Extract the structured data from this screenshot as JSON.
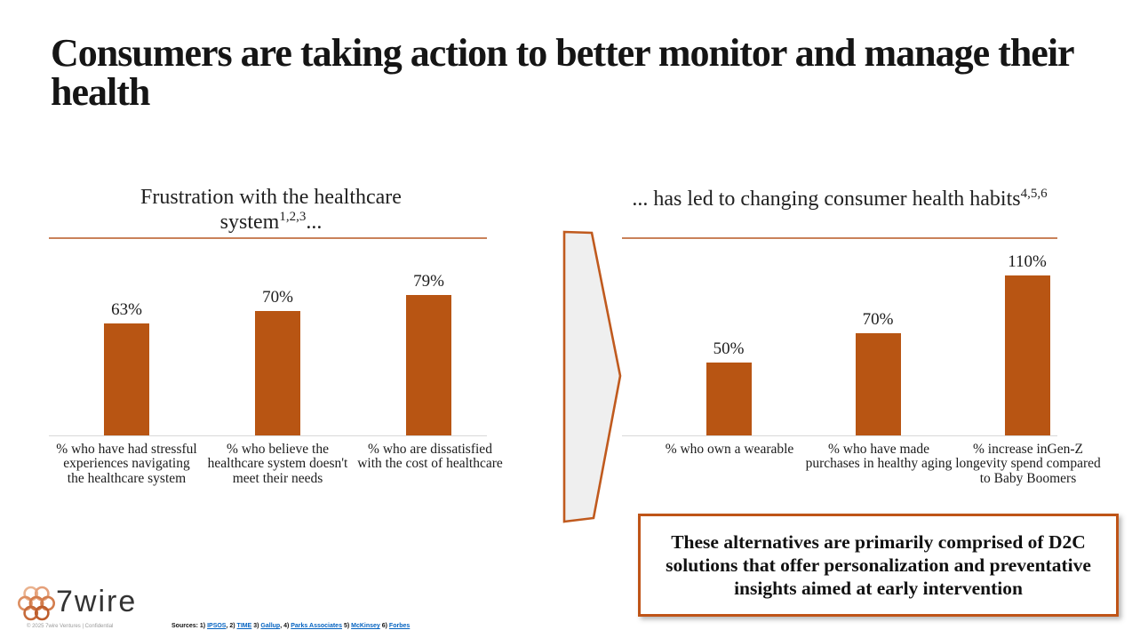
{
  "slide": {
    "title": "Consumers are taking action to better monitor and manage their health"
  },
  "left_panel": {
    "title_main": "Frustration with the healthcare system",
    "title_sup": "1,2,3",
    "title_tail": "..."
  },
  "right_panel": {
    "title_main": "... has led to changing consumer health habits",
    "title_sup": "4,5,6",
    "title_tail": ""
  },
  "chart_data": [
    {
      "type": "bar",
      "title": "Frustration with the healthcare system 1,2,3 ...",
      "categories": [
        "% who have had stressful experiences navigating the healthcare system",
        "% who believe the healthcare system doesn't meet their needs",
        "% who are dissatisfied with the cost of healthcare"
      ],
      "values": [
        63,
        70,
        79
      ],
      "labels": [
        "63%",
        "70%",
        "79%"
      ],
      "bar_color": "#b85513",
      "ylim": [
        0,
        100
      ],
      "grid": false,
      "legend": false
    },
    {
      "type": "bar",
      "title": "... has led to changing consumer health habits 4,5,6",
      "categories": [
        "% who own a wearable",
        "% who have made purchases in healthy aging",
        "% increase inGen-Z longevity spend compared to Baby Boomers"
      ],
      "values": [
        50,
        70,
        110
      ],
      "labels": [
        "50%",
        "70%",
        "110%"
      ],
      "bar_color": "#b85513",
      "ylim": [
        0,
        125
      ],
      "grid": false,
      "legend": false
    }
  ],
  "callout": {
    "text": "These alternatives are primarily comprised of D2C solutions that offer personalization and preventative insights aimed at early intervention"
  },
  "footer": {
    "logo_text": "7wire",
    "copyright": "©  2025  7wire  Ventures   |   Confidential",
    "sources_prefix": "Sources: ",
    "sources": [
      {
        "pre": "1) ",
        "link": "IPSOS",
        "post": ", "
      },
      {
        "pre": "2) ",
        "link": "TIME",
        "post": " "
      },
      {
        "pre": "3) ",
        "link": "Gallup",
        "post": ", "
      },
      {
        "pre": "4) ",
        "link": "Parks Associates",
        "post": " "
      },
      {
        "pre": "5) ",
        "link": "McKinsey",
        "post": " "
      },
      {
        "pre": "6) ",
        "link": "Forbes",
        "post": ""
      }
    ]
  },
  "colors": {
    "bar": "#b85513",
    "accent_border": "#bf5417",
    "underline": "#c9825a",
    "arrow_fill": "#efefef",
    "arrow_stroke": "#c05a1e",
    "link": "#0563c1"
  }
}
